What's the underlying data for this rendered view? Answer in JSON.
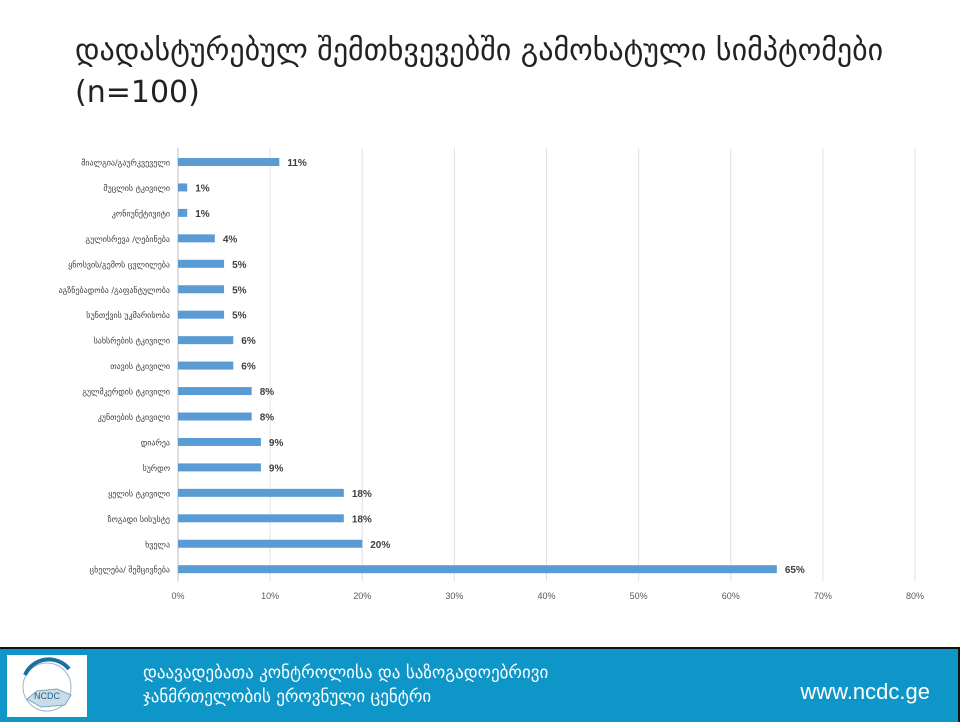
{
  "chart_data": {
    "type": "bar",
    "orientation": "horizontal",
    "title": "დადასტურებულ შემთხვევებში გამოხატული სიმპტომები (n=100)",
    "categories": [
      "მიალგია/გაურკვეველი",
      "მუცლის ტკივილი",
      "კონიუნქტივიტი",
      "გულისრევა /ღებინება",
      "ყნოსვის/გემოს ცვლილება",
      "აგზნებადობა /გაფანტულობა",
      "სუნთქვის უკმარისობა",
      "სახსრების ტკივილი",
      "თავის ტკივილი",
      "გულმკერდის ტკივილი",
      "კუნთების ტკივილი",
      "დიარეა",
      "სურდო",
      "ყელის ტკივილი",
      "ზოგადი სისუსტე",
      "ხველა",
      "ცხელება/ შემცივნება"
    ],
    "values": [
      11,
      1,
      1,
      4,
      5,
      5,
      5,
      6,
      6,
      8,
      8,
      9,
      9,
      18,
      18,
      20,
      65
    ],
    "value_labels": [
      "11%",
      "1%",
      "1%",
      "4%",
      "5%",
      "5%",
      "5%",
      "6%",
      "6%",
      "8%",
      "8%",
      "9%",
      "9%",
      "18%",
      "18%",
      "20%",
      "65%"
    ],
    "xlim": [
      0,
      80
    ],
    "xticks": [
      "0%",
      "10%",
      "20%",
      "30%",
      "40%",
      "50%",
      "60%",
      "70%",
      "80%"
    ],
    "grid": true,
    "bar_color": "#5b9bd5"
  },
  "footer": {
    "org_line1": "დაავადებათა კონტროლისა და საზოგადოებრივი",
    "org_line2": "ჯანმრთელობის ეროვნული ცენტრი",
    "url": "www.ncdc.ge",
    "logo_text": "NCDC",
    "bg_color": "#0f96c8"
  }
}
